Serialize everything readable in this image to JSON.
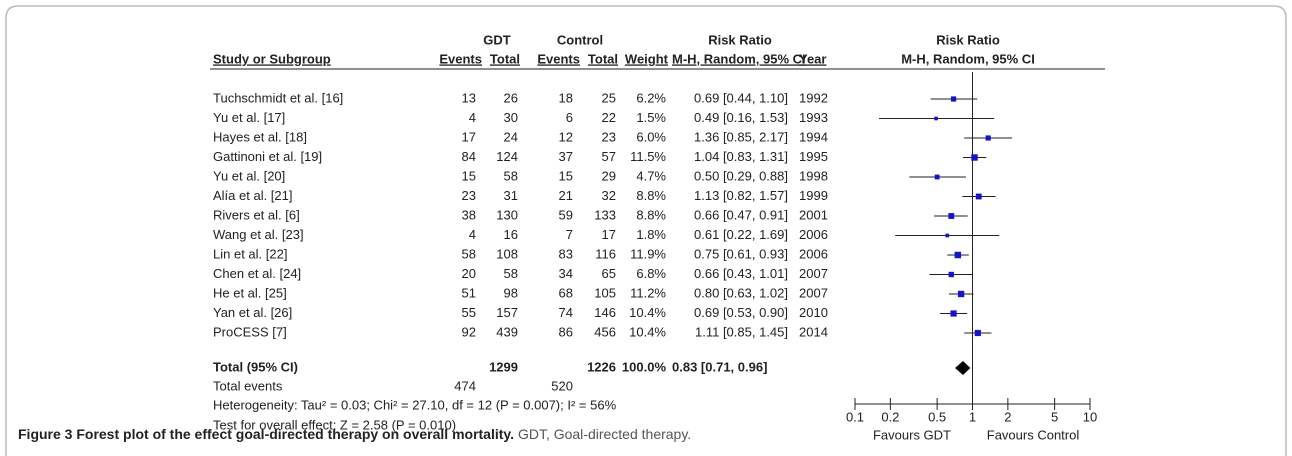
{
  "chart_data": {
    "type": "forest",
    "caption_title": "Figure 3 Forest plot of the effect goal-directed therapy on overall mortality.",
    "caption_text": "GDT, Goal-directed therapy.",
    "group1": "GDT",
    "group2": "Control",
    "columns": [
      "Study or Subgroup",
      "Events",
      "Total",
      "Events",
      "Total",
      "Weight",
      "M-H, Random, 95% CI",
      "Year"
    ],
    "measure": "Risk Ratio",
    "plot_measure": "Risk Ratio",
    "plot_method": "M-H, Random, 95% CI",
    "studies": [
      "Tuchschmidt et al. [16]",
      "Yu et al. [17]",
      "Hayes et al. [18]",
      "Gattinoni et al. [19]",
      "Yu et al. [20]",
      "Alía et al. [21]",
      "Rivers et al. [6]",
      "Wang et al. [23]",
      "Lin et al. [22]",
      "Chen et al. [24]",
      "He et al. [25]",
      "Yan et al. [26]",
      "ProCESS [7]"
    ],
    "gdt_events": [
      13,
      4,
      17,
      84,
      15,
      23,
      38,
      4,
      58,
      20,
      51,
      55,
      92
    ],
    "gdt_totals": [
      26,
      30,
      24,
      124,
      58,
      31,
      130,
      16,
      108,
      58,
      98,
      157,
      439
    ],
    "control_events": [
      18,
      6,
      12,
      37,
      15,
      21,
      59,
      7,
      83,
      34,
      68,
      74,
      86
    ],
    "control_totals": [
      25,
      22,
      23,
      57,
      29,
      32,
      133,
      17,
      116,
      65,
      105,
      146,
      456
    ],
    "weights": [
      6.2,
      1.5,
      6.0,
      11.5,
      4.7,
      8.8,
      8.8,
      1.8,
      11.9,
      6.8,
      11.2,
      10.4,
      10.4
    ],
    "weight_labels": [
      "6.2%",
      "1.5%",
      "6.0%",
      "11.5%",
      "4.7%",
      "8.8%",
      "8.8%",
      "1.8%",
      "11.9%",
      "6.8%",
      "11.2%",
      "10.4%",
      "10.4%"
    ],
    "rr": [
      0.69,
      0.49,
      1.36,
      1.04,
      0.5,
      1.13,
      0.66,
      0.61,
      0.75,
      0.66,
      0.8,
      0.69,
      1.11
    ],
    "lower": [
      0.44,
      0.16,
      0.85,
      0.83,
      0.29,
      0.82,
      0.47,
      0.22,
      0.61,
      0.43,
      0.63,
      0.53,
      0.85
    ],
    "upper": [
      1.1,
      1.53,
      2.17,
      1.31,
      0.88,
      1.57,
      0.91,
      1.69,
      0.93,
      1.01,
      1.02,
      0.9,
      1.45
    ],
    "ci_labels": [
      "0.69 [0.44, 1.10]",
      "0.49 [0.16, 1.53]",
      "1.36 [0.85, 2.17]",
      "1.04 [0.83, 1.31]",
      "0.50 [0.29, 0.88]",
      "1.13 [0.82, 1.57]",
      "0.66 [0.47, 0.91]",
      "0.61 [0.22, 1.69]",
      "0.75 [0.61, 0.93]",
      "0.66 [0.43, 1.01]",
      "0.80 [0.63, 1.02]",
      "0.69 [0.53, 0.90]",
      "1.11 [0.85, 1.45]"
    ],
    "years": [
      1992,
      1993,
      1994,
      1995,
      1998,
      1999,
      2001,
      2006,
      2006,
      2007,
      2007,
      2010,
      2014
    ],
    "total": {
      "label": "Total (95% CI)",
      "gdt_total": 1299,
      "control_total": 1226,
      "weight": 100.0,
      "weight_label": "100.0%",
      "ci_label": "0.83 [0.71, 0.96]",
      "rr": 0.83,
      "lower": 0.71,
      "upper": 0.96
    },
    "total_events": {
      "label": "Total events",
      "gdt": 474,
      "control": 520
    },
    "heterogeneity": "Heterogeneity: Tau² = 0.03; Chi² = 27.10, df = 12 (P = 0.007); I² = 56%",
    "overall_effect": "Test for overall effect: Z = 2.58 (P = 0.010)",
    "favours_left": "Favours GDT",
    "favours_right": "Favours Control",
    "log_scale": true,
    "xlim": [
      0.1,
      10
    ],
    "xticks": [
      0.1,
      0.2,
      0.5,
      1,
      2,
      5,
      10
    ],
    "color": "#1515c8"
  }
}
